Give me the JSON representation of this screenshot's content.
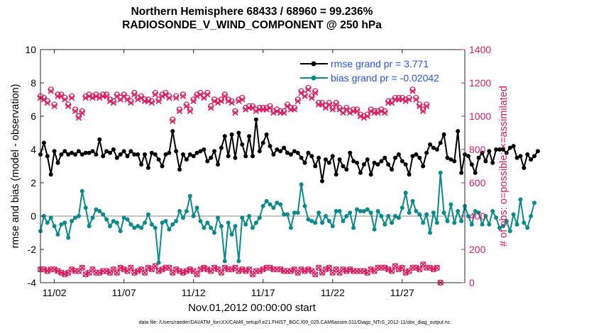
{
  "title_line1": "Northern Hemisphere 68433 / 68960 = 99.236%",
  "title_line2": "RADIOSONDE_V_WIND_COMPONENT @ 250 hPa",
  "footer": "data file: /Users/raeder/DAI/ATM_forcXX/CAM6_setup/f.e21.FHIST_BGC.f09_025.CAM6assim.011/Diags_NTrS_2012-11/obs_diag_output.nc",
  "colors": {
    "rmse": "#000000",
    "bias": "#0b8a8a",
    "obs": "#d81c5e",
    "zero_line": "#b0b0b0",
    "legend_text": "#2a52e6"
  },
  "chart_data": {
    "type": "line",
    "xlabel": "Nov.01,2012 00:00:00 start",
    "ylabel": "rmse and bias (model - observation)",
    "y2label": "# of obs: o=possible; ×=assimilated",
    "xlim": [
      0,
      30.5
    ],
    "ylim": [
      -4,
      10
    ],
    "y2lim": [
      0,
      1400
    ],
    "x_ticks": [
      1,
      6,
      11,
      16,
      21,
      26
    ],
    "x_tick_labels": [
      "11/02",
      "11/07",
      "11/12",
      "11/17",
      "11/22",
      "11/27"
    ],
    "y_ticks": [
      -4,
      -2,
      0,
      2,
      4,
      6,
      8,
      10
    ],
    "y_tick_labels": [
      "-4",
      "-2",
      "0",
      "2",
      "4",
      "6",
      "8",
      "10"
    ],
    "y2_ticks": [
      0,
      200,
      400,
      600,
      800,
      1000,
      1200,
      1400
    ],
    "y2_tick_labels": [
      "0",
      "200",
      "400",
      "600",
      "800",
      "1000",
      "1200",
      "1400"
    ],
    "legend": {
      "position": "top-right",
      "entries": [
        "rmse grand pr = 3.771",
        "bias grand pr = -0.02042"
      ]
    },
    "x_step": 0.25,
    "series": [
      {
        "name": "rmse",
        "axis": "left",
        "values": [
          3.7,
          4.4,
          3.6,
          2.5,
          3.9,
          3.2,
          3.7,
          3.9,
          3.7,
          3.8,
          3.7,
          3.9,
          3.7,
          3.8,
          3.8,
          3.9,
          3.7,
          4.6,
          3.6,
          3.9,
          3.8,
          4.0,
          3.5,
          3.7,
          3.9,
          3.6,
          3.9,
          3.7,
          3.7,
          3.1,
          3.7,
          2.9,
          3.8,
          3.7,
          3.4,
          3.0,
          3.7,
          3.8,
          5.1,
          3.9,
          2.8,
          3.7,
          3.4,
          3.7,
          3.6,
          3.8,
          3.9,
          4.0,
          3.3,
          3.5,
          3.9,
          3.1,
          4.1,
          4.8,
          3.6,
          4.9,
          3.5,
          5.0,
          4.3,
          3.6,
          4.8,
          3.6,
          5.8,
          3.9,
          4.4,
          4.9,
          4.2,
          3.7,
          4.0,
          3.9,
          4.1,
          3.8,
          3.7,
          3.9,
          3.8,
          3.5,
          3.2,
          3.8,
          3.6,
          3.0,
          3.5,
          2.1,
          3.4,
          3.2,
          3.6,
          2.5,
          3.4,
          3.0,
          2.8,
          3.8,
          3.3,
          3.2,
          2.6,
          3.1,
          3.4,
          2.5,
          3.2,
          3.1,
          3.3,
          3.5,
          3.1,
          2.8,
          3.5,
          3.7,
          3.3,
          3.1,
          2.5,
          3.6,
          3.7,
          3.5,
          3.0,
          3.8,
          4.3,
          4.1,
          4.0,
          4.4,
          4.9,
          3.5,
          3.4,
          3.3,
          5.1,
          2.6,
          3.7,
          3.6,
          3.1,
          2.6,
          3.5,
          3.8,
          3.3,
          3.9,
          3.2,
          4.0,
          4.0,
          4.0,
          3.8,
          4.1,
          4.2,
          3.5,
          3.6,
          2.9,
          3.7,
          3.4,
          3.6,
          3.9
        ]
      },
      {
        "name": "bias",
        "axis": "left",
        "values": [
          -0.9,
          0.0,
          -0.4,
          -0.1,
          -0.6,
          -1.1,
          -0.5,
          -0.4,
          -1.3,
          -0.3,
          -0.1,
          0.0,
          1.5,
          0.5,
          -0.6,
          -0.1,
          0.4,
          0.3,
          0.1,
          -0.2,
          -0.6,
          -0.3,
          -0.4,
          -0.9,
          -0.1,
          -0.2,
          -0.5,
          -0.7,
          -0.6,
          -0.7,
          -0.4,
          0.1,
          -0.5,
          -0.7,
          -2.8,
          -0.4,
          -0.3,
          -0.8,
          -0.5,
          -0.3,
          0.3,
          -0.1,
          0.3,
          1.2,
          0.0,
          0.5,
          -0.3,
          -0.7,
          -0.4,
          -0.7,
          -1.0,
          -0.1,
          -0.6,
          -2.7,
          -0.4,
          -1.1,
          -0.6,
          -2.7,
          -0.1,
          -0.5,
          0.0,
          -0.7,
          -0.4,
          -0.1,
          0.6,
          0.9,
          0.7,
          0.5,
          0.8,
          0.7,
          0.1,
          0.1,
          -0.7,
          0.2,
          0.2,
          1.9,
          0.6,
          -0.2,
          -0.3,
          -0.4,
          0.2,
          -0.4,
          0.0,
          -0.3,
          -0.6,
          0.3,
          0.3,
          -0.3,
          0.0,
          0.2,
          -0.7,
          0.4,
          0.3,
          0.3,
          0.4,
          0.2,
          -0.8,
          0.3,
          0.0,
          -0.5,
          0.0,
          -0.4,
          0.0,
          -0.1,
          0.5,
          1.4,
          0.2,
          0.9,
          0.3,
          0.1,
          -0.4,
          0.1,
          -1.0,
          0.2,
          -0.4,
          2.6,
          0.2,
          -0.3,
          0.7,
          -0.4,
          0.3,
          -0.3,
          0.6,
          0.0,
          -0.5,
          0.3,
          0.2,
          -0.5,
          0.0,
          -0.5,
          0.3,
          -0.1,
          -0.7,
          -0.6,
          -0.3,
          -0.9,
          0.1,
          -0.5,
          1.0,
          -0.4,
          -0.7,
          0.0,
          0.8
        ]
      },
      {
        "name": "obs possible",
        "axis": "right",
        "values": [
          1120,
          1110,
          1090,
          1160,
          1070,
          1130,
          1130,
          1110,
          1070,
          1120,
          1040,
          1000,
          1030,
          1120,
          1130,
          1120,
          1130,
          1120,
          1130,
          1130,
          1100,
          1090,
          1130,
          1110,
          1130,
          1110,
          1090,
          1140,
          1110,
          1120,
          1100,
          1100,
          1090,
          1140,
          1100,
          1130,
          1140,
          1120,
          980,
          1120,
          1040,
          1130,
          1070,
          1040,
          1100,
          1130,
          1140,
          1120,
          1140,
          1060,
          1100,
          1090,
          1100,
          1130,
          1100,
          1090,
          1030,
          1100,
          1110,
          1050,
          1060,
          1060,
          1040,
          1050,
          1050,
          1050,
          1060,
          1030,
          1040,
          1030,
          1030,
          1070,
          1050,
          1050,
          1100,
          1150,
          1130,
          1170,
          1120,
          1150,
          1080,
          1080,
          1060,
          1080,
          1050,
          1080,
          1050,
          1030,
          1050,
          1030,
          1040,
          1040,
          1010,
          1000,
          1010,
          1040,
          1030,
          1030,
          1040,
          1030,
          1090,
          1090,
          1110,
          1110,
          1110,
          1100,
          1110,
          1160,
          1110,
          1070,
          1040,
          1070
        ]
      },
      {
        "name": "obs assimilated",
        "axis": "right",
        "values": [
          1110,
          1100,
          1080,
          1150,
          1060,
          1120,
          1120,
          1100,
          1060,
          1110,
          1030,
          990,
          1020,
          1110,
          1120,
          1110,
          1120,
          1110,
          1120,
          1120,
          1090,
          1080,
          1120,
          1100,
          1120,
          1100,
          1080,
          1130,
          1100,
          1110,
          1090,
          1090,
          1080,
          1130,
          1090,
          1120,
          1130,
          1110,
          970,
          1110,
          1030,
          1120,
          1060,
          1030,
          1090,
          1120,
          1130,
          1110,
          1130,
          1050,
          1090,
          1080,
          1090,
          1120,
          1090,
          1080,
          1020,
          1090,
          1100,
          1040,
          1050,
          1050,
          1030,
          1040,
          1040,
          1040,
          1050,
          1020,
          1030,
          1020,
          1020,
          1060,
          1040,
          1040,
          1090,
          1140,
          1120,
          1160,
          1110,
          1140,
          1070,
          1070,
          1050,
          1070,
          1040,
          1070,
          1040,
          1020,
          1040,
          1020,
          1030,
          1030,
          1000,
          990,
          1000,
          1030,
          1020,
          1020,
          1030,
          1020,
          1080,
          1080,
          1100,
          1100,
          1100,
          1090,
          1100,
          1150,
          1100,
          1060,
          1030,
          1060
        ]
      },
      {
        "name": "obs possible low",
        "axis": "right",
        "values": [
          80,
          80,
          70,
          80,
          80,
          70,
          60,
          50,
          60,
          80,
          70,
          70,
          90,
          50,
          60,
          80,
          60,
          60,
          70,
          70,
          60,
          80,
          60,
          90,
          80,
          70,
          90,
          60,
          70,
          80,
          60,
          90,
          80,
          100,
          70,
          80,
          90,
          90,
          60,
          80,
          70,
          60,
          70,
          80,
          70,
          50,
          80,
          90,
          80,
          70,
          90,
          80,
          60,
          90,
          80,
          80,
          90,
          70,
          80,
          70,
          80,
          50,
          70,
          70,
          80,
          90,
          90,
          80,
          80,
          80,
          70,
          70,
          70,
          80,
          60,
          80,
          70,
          80,
          70,
          50,
          90,
          60,
          80,
          90,
          60,
          80,
          60,
          80,
          70,
          80,
          70,
          70,
          70,
          70,
          60,
          80,
          70,
          90,
          90,
          90,
          80,
          70,
          100,
          80,
          90,
          60,
          70,
          90,
          90,
          80,
          110,
          90,
          90,
          80,
          90,
          0
        ]
      },
      {
        "name": "obs assimilated low",
        "axis": "right",
        "values": [
          80,
          80,
          70,
          80,
          80,
          70,
          60,
          50,
          60,
          80,
          70,
          70,
          90,
          50,
          60,
          80,
          60,
          60,
          70,
          70,
          60,
          80,
          60,
          90,
          80,
          70,
          90,
          60,
          70,
          80,
          60,
          90,
          80,
          100,
          70,
          80,
          90,
          90,
          60,
          80,
          70,
          60,
          70,
          80,
          70,
          50,
          80,
          90,
          80,
          70,
          90,
          80,
          60,
          90,
          80,
          80,
          90,
          70,
          80,
          70,
          80,
          50,
          70,
          70,
          80,
          90,
          90,
          80,
          80,
          80,
          70,
          70,
          70,
          80,
          60,
          80,
          70,
          80,
          70,
          50,
          90,
          60,
          80,
          90,
          60,
          80,
          60,
          80,
          70,
          80,
          70,
          70,
          70,
          70,
          60,
          80,
          70,
          90,
          90,
          90,
          80,
          70,
          100,
          80,
          90,
          60,
          70,
          90,
          90,
          80,
          110,
          90,
          90,
          80,
          90,
          0
        ]
      }
    ]
  }
}
